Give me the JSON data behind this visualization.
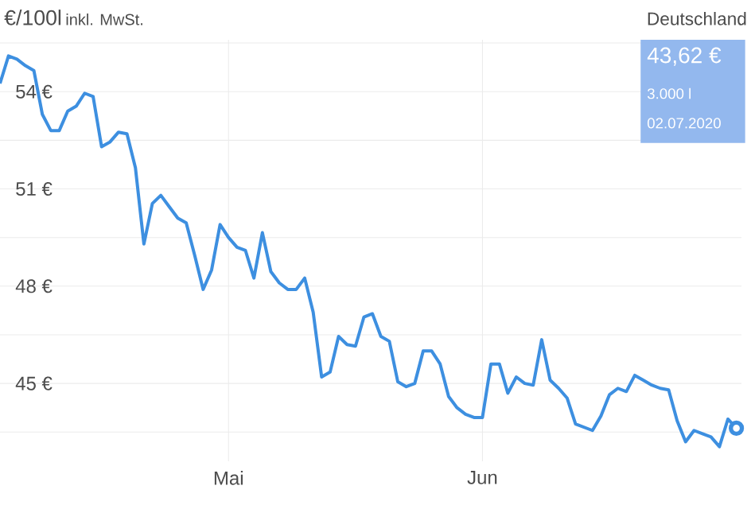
{
  "chart_data": {
    "type": "line",
    "title": "€/100l",
    "subtitle": "inkl. MwSt.",
    "annotations": [
      "Deutschland",
      "43,62 €",
      "3.000 l",
      "02.07.2020"
    ],
    "categories": [
      null,
      null,
      null,
      null,
      null,
      null,
      null,
      null,
      null,
      null,
      null,
      null,
      null,
      null,
      null,
      null,
      null,
      null,
      null,
      null,
      null,
      null,
      null,
      null,
      null,
      null,
      null,
      "Mai",
      null,
      null,
      null,
      null,
      null,
      null,
      null,
      null,
      null,
      null,
      null,
      null,
      null,
      null,
      null,
      null,
      null,
      null,
      null,
      null,
      null,
      null,
      null,
      null,
      null,
      null,
      null,
      null,
      null,
      "Jun",
      null,
      null,
      null,
      null,
      null,
      null,
      null,
      null,
      null,
      null,
      null,
      null,
      null,
      null,
      null,
      null,
      null,
      null,
      null,
      null,
      null,
      null,
      null,
      null,
      null,
      null,
      null,
      null,
      null,
      null
    ],
    "series": [
      {
        "type": "scatter",
        "color": "#3d8fe0",
        "values": [
          null,
          null,
          null,
          null,
          null,
          null,
          null,
          null,
          null,
          null,
          null,
          null,
          null,
          null,
          null,
          null,
          null,
          null,
          null,
          null,
          null,
          null,
          null,
          null,
          null,
          null,
          null,
          null,
          null,
          null,
          null,
          null,
          null,
          null,
          null,
          null,
          null,
          null,
          null,
          null,
          null,
          null,
          null,
          null,
          null,
          null,
          null,
          null,
          null,
          null,
          null,
          null,
          null,
          null,
          null,
          null,
          null,
          null,
          null,
          null,
          null,
          null,
          null,
          null,
          null,
          null,
          null,
          null,
          null,
          null,
          null,
          null,
          null,
          null,
          null,
          null,
          null,
          null,
          null,
          null,
          null,
          null,
          null,
          null,
          null,
          null,
          null,
          43.62
        ]
      },
      {
        "color": "#3d8fe0",
        "values": [
          54.25,
          55.1,
          55.0,
          54.8,
          54.65,
          53.3,
          52.8,
          52.8,
          53.4,
          53.55,
          53.95,
          53.85,
          52.3,
          52.45,
          52.75,
          52.7,
          51.65,
          49.3,
          50.55,
          50.8,
          50.45,
          50.1,
          49.95,
          48.95,
          47.9,
          48.5,
          49.9,
          49.5,
          49.2,
          49.1,
          48.25,
          49.65,
          48.45,
          48.1,
          47.9,
          47.9,
          48.25,
          47.2,
          45.2,
          45.35,
          46.45,
          46.2,
          46.15,
          47.05,
          47.15,
          46.45,
          46.3,
          45.05,
          44.9,
          45.0,
          46.0,
          46.0,
          45.6,
          44.6,
          44.25,
          44.05,
          43.95,
          43.95,
          45.6,
          45.6,
          44.7,
          45.2,
          45.0,
          44.95,
          46.35,
          45.1,
          44.85,
          44.55,
          43.75,
          43.65,
          43.55,
          44.0,
          44.65,
          44.85,
          44.75,
          45.25,
          45.1,
          44.95,
          44.85,
          44.8,
          43.85,
          43.2,
          43.55,
          43.45,
          43.35,
          43.05,
          43.9,
          43.62
        ]
      }
    ],
    "ylim": [
      42.6,
      55.6
    ],
    "yticks": [
      {
        "value": 43.5,
        "label": null
      },
      {
        "value": 45,
        "label": "45 €"
      },
      {
        "value": 46.5,
        "label": null
      },
      {
        "value": 48,
        "label": "48 €"
      },
      {
        "value": 49.5,
        "label": null
      },
      {
        "value": 51,
        "label": "51 €"
      },
      {
        "value": 52.5,
        "label": null
      },
      {
        "value": 54,
        "label": "54 €"
      },
      {
        "value": 55.5,
        "label": null
      }
    ],
    "grid": true,
    "line_style": "solid"
  }
}
